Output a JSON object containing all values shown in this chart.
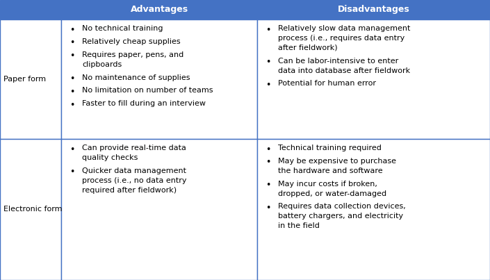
{
  "header_bg": "#4472C4",
  "header_text_color": "#FFFFFF",
  "cell_bg": "#FFFFFF",
  "border_color": "#4472C4",
  "text_color": "#000000",
  "header_row": [
    "",
    "Advantages",
    "Disadvantages"
  ],
  "col1_labels": [
    "Paper form",
    "Electronic form"
  ],
  "adv_paper": [
    "No technical training",
    "Relatively cheap supplies",
    "Requires paper, pens, and\nclipboards",
    "No maintenance of supplies",
    "No limitation on number of teams",
    "Faster to fill during an interview"
  ],
  "dis_paper": [
    "Relatively slow data management\nprocess (i.e., requires data entry\nafter fieldwork)",
    "Can be labor-intensive to enter\ndata into database after fieldwork",
    "Potential for human error"
  ],
  "adv_elec": [
    "Can provide real-time data\nquality checks",
    "Quicker data management\nprocess (i.e., no data entry\nrequired after fieldwork)"
  ],
  "dis_elec": [
    "Technical training required",
    "May be expensive to purchase\nthe hardware and software",
    "May incur costs if broken,\ndropped, or water-damaged",
    "Requires data collection devices,\nbattery chargers, and electricity\nin the field"
  ],
  "fig_width": 7.05,
  "fig_height": 4.03,
  "dpi": 100,
  "header_fontsize": 9.0,
  "cell_fontsize": 8.0,
  "label_fontsize": 8.0
}
